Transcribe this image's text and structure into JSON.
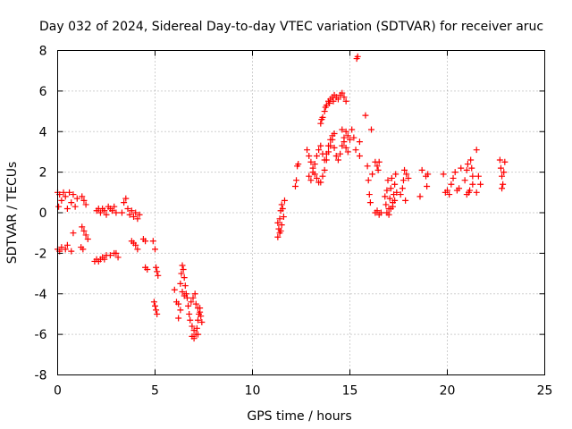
{
  "chart_data": {
    "type": "scatter",
    "title": "Day 032 of 2024, Sidereal Day-to-day VTEC variation (SDTVAR) for receiver aruc",
    "xlabel": "GPS time / hours",
    "ylabel": "SDTVAR / TECUs",
    "xlim": [
      0,
      25
    ],
    "ylim": [
      -8,
      8
    ],
    "xticks": [
      0,
      5,
      10,
      15,
      20,
      25
    ],
    "yticks": [
      -8,
      -6,
      -4,
      -2,
      0,
      2,
      4,
      6,
      8
    ],
    "grid": true,
    "marker": "+",
    "color": "#ff0000",
    "series": [
      {
        "name": "SDTVAR",
        "points": [
          [
            0.0,
            1.0
          ],
          [
            0.1,
            0.9
          ],
          [
            0.2,
            0.6
          ],
          [
            0.3,
            1.0
          ],
          [
            0.4,
            0.8
          ],
          [
            0.6,
            1.0
          ],
          [
            0.7,
            0.5
          ],
          [
            0.8,
            0.9
          ],
          [
            0.9,
            0.3
          ],
          [
            1.0,
            0.7
          ],
          [
            0.05,
            0.3
          ],
          [
            0.5,
            0.2
          ],
          [
            0.0,
            -1.8
          ],
          [
            0.1,
            -1.9
          ],
          [
            0.2,
            -1.7
          ],
          [
            0.4,
            -1.8
          ],
          [
            0.5,
            -1.6
          ],
          [
            0.7,
            -1.9
          ],
          [
            0.8,
            -1.0
          ],
          [
            1.2,
            -1.7
          ],
          [
            1.3,
            -1.8
          ],
          [
            1.25,
            -0.7
          ],
          [
            1.35,
            -0.9
          ],
          [
            1.45,
            -1.1
          ],
          [
            1.55,
            -1.3
          ],
          [
            1.25,
            0.8
          ],
          [
            1.35,
            0.6
          ],
          [
            1.45,
            0.4
          ],
          [
            2.0,
            0.1
          ],
          [
            2.1,
            0.2
          ],
          [
            2.2,
            0.0
          ],
          [
            2.3,
            0.2
          ],
          [
            2.4,
            0.1
          ],
          [
            2.5,
            -0.1
          ],
          [
            2.6,
            0.3
          ],
          [
            2.7,
            0.2
          ],
          [
            2.8,
            0.1
          ],
          [
            2.9,
            0.3
          ],
          [
            3.0,
            0.0
          ],
          [
            1.9,
            -2.4
          ],
          [
            2.0,
            -2.3
          ],
          [
            2.1,
            -2.4
          ],
          [
            2.2,
            -2.3
          ],
          [
            2.3,
            -2.2
          ],
          [
            2.4,
            -2.3
          ],
          [
            2.5,
            -2.1
          ],
          [
            2.7,
            -2.1
          ],
          [
            2.9,
            -2.0
          ],
          [
            3.0,
            -2.0
          ],
          [
            3.1,
            -2.2
          ],
          [
            3.3,
            0.0
          ],
          [
            3.4,
            0.5
          ],
          [
            3.5,
            0.7
          ],
          [
            3.6,
            0.2
          ],
          [
            3.7,
            -0.1
          ],
          [
            3.8,
            0.1
          ],
          [
            3.9,
            -0.2
          ],
          [
            4.0,
            0.0
          ],
          [
            4.1,
            -0.3
          ],
          [
            4.2,
            -0.1
          ],
          [
            3.8,
            -1.4
          ],
          [
            3.9,
            -1.5
          ],
          [
            4.0,
            -1.6
          ],
          [
            4.1,
            -1.8
          ],
          [
            4.4,
            -1.3
          ],
          [
            4.5,
            -1.4
          ],
          [
            4.5,
            -2.7
          ],
          [
            4.6,
            -2.8
          ],
          [
            4.9,
            -1.4
          ],
          [
            5.0,
            -1.8
          ],
          [
            5.05,
            -2.7
          ],
          [
            5.1,
            -2.9
          ],
          [
            5.15,
            -3.1
          ],
          [
            4.95,
            -4.4
          ],
          [
            5.0,
            -4.6
          ],
          [
            5.05,
            -4.8
          ],
          [
            5.1,
            -5.0
          ],
          [
            6.0,
            -3.8
          ],
          [
            6.1,
            -4.4
          ],
          [
            6.2,
            -4.5
          ],
          [
            6.3,
            -3.5
          ],
          [
            6.35,
            -3.0
          ],
          [
            6.4,
            -2.6
          ],
          [
            6.45,
            -2.8
          ],
          [
            6.5,
            -3.2
          ],
          [
            6.55,
            -3.6
          ],
          [
            6.6,
            -4.0
          ],
          [
            6.65,
            -4.2
          ],
          [
            6.7,
            -4.6
          ],
          [
            6.2,
            -5.2
          ],
          [
            6.3,
            -4.8
          ],
          [
            6.4,
            -3.9
          ],
          [
            6.5,
            -4.1
          ],
          [
            6.75,
            -5.0
          ],
          [
            6.8,
            -5.3
          ],
          [
            6.9,
            -5.6
          ],
          [
            7.0,
            -5.8
          ],
          [
            7.1,
            -6.0
          ],
          [
            7.15,
            -5.7
          ],
          [
            7.2,
            -5.3
          ],
          [
            7.25,
            -5.0
          ],
          [
            7.3,
            -4.7
          ],
          [
            7.35,
            -5.1
          ],
          [
            7.4,
            -5.4
          ],
          [
            6.85,
            -4.4
          ],
          [
            6.95,
            -4.2
          ],
          [
            7.05,
            -4.0
          ],
          [
            7.1,
            -4.5
          ],
          [
            7.2,
            -4.7
          ],
          [
            7.3,
            -4.9
          ],
          [
            6.9,
            -6.1
          ],
          [
            7.0,
            -6.2
          ],
          [
            7.2,
            -6.0
          ],
          [
            11.3,
            -1.2
          ],
          [
            11.35,
            -0.8
          ],
          [
            11.4,
            -0.3
          ],
          [
            11.45,
            0.1
          ],
          [
            11.5,
            0.4
          ],
          [
            11.55,
            0.2
          ],
          [
            11.4,
            -1.0
          ],
          [
            11.5,
            -0.6
          ],
          [
            11.6,
            -0.2
          ],
          [
            11.65,
            0.6
          ],
          [
            11.3,
            -0.5
          ],
          [
            11.45,
            -0.9
          ],
          [
            12.2,
            1.3
          ],
          [
            12.25,
            1.6
          ],
          [
            12.3,
            2.3
          ],
          [
            12.35,
            2.4
          ],
          [
            12.8,
            3.1
          ],
          [
            12.9,
            2.8
          ],
          [
            13.0,
            2.5
          ],
          [
            13.1,
            2.2
          ],
          [
            13.2,
            1.9
          ],
          [
            13.3,
            1.7
          ],
          [
            13.4,
            1.5
          ],
          [
            13.5,
            1.5
          ],
          [
            13.6,
            1.8
          ],
          [
            13.7,
            2.1
          ],
          [
            13.8,
            2.6
          ],
          [
            13.9,
            3.0
          ],
          [
            14.0,
            3.3
          ],
          [
            14.1,
            3.6
          ],
          [
            14.2,
            3.9
          ],
          [
            12.9,
            1.8
          ],
          [
            13.0,
            1.6
          ],
          [
            13.1,
            2.0
          ],
          [
            13.2,
            2.4
          ],
          [
            13.3,
            2.8
          ],
          [
            13.4,
            3.1
          ],
          [
            13.5,
            3.3
          ],
          [
            13.6,
            2.9
          ],
          [
            13.7,
            2.6
          ],
          [
            13.8,
            2.9
          ],
          [
            13.9,
            3.3
          ],
          [
            14.0,
            3.6
          ],
          [
            14.1,
            3.8
          ],
          [
            14.2,
            3.2
          ],
          [
            14.3,
            2.8
          ],
          [
            14.4,
            2.6
          ],
          [
            14.5,
            2.9
          ],
          [
            14.6,
            3.3
          ],
          [
            14.7,
            3.7
          ],
          [
            14.8,
            4.0
          ],
          [
            14.9,
            3.8
          ],
          [
            13.5,
            4.4
          ],
          [
            13.6,
            4.7
          ],
          [
            13.7,
            5.0
          ],
          [
            13.8,
            5.3
          ],
          [
            13.9,
            5.5
          ],
          [
            14.0,
            5.6
          ],
          [
            14.1,
            5.7
          ],
          [
            14.2,
            5.8
          ],
          [
            14.3,
            5.7
          ],
          [
            14.4,
            5.6
          ],
          [
            14.5,
            5.8
          ],
          [
            14.6,
            5.9
          ],
          [
            14.7,
            5.7
          ],
          [
            14.8,
            5.5
          ],
          [
            13.55,
            4.6
          ],
          [
            13.75,
            5.2
          ],
          [
            13.95,
            5.4
          ],
          [
            14.15,
            5.5
          ],
          [
            14.6,
            4.1
          ],
          [
            14.7,
            3.5
          ],
          [
            14.8,
            3.2
          ],
          [
            14.9,
            3.0
          ],
          [
            15.0,
            3.6
          ],
          [
            15.1,
            4.1
          ],
          [
            15.2,
            3.7
          ],
          [
            15.3,
            3.1
          ],
          [
            15.35,
            7.6
          ],
          [
            15.4,
            7.7
          ],
          [
            15.5,
            3.5
          ],
          [
            15.5,
            2.8
          ],
          [
            15.8,
            4.8
          ],
          [
            15.9,
            2.3
          ],
          [
            15.95,
            1.6
          ],
          [
            16.0,
            0.9
          ],
          [
            16.05,
            0.5
          ],
          [
            16.1,
            4.1
          ],
          [
            16.15,
            1.9
          ],
          [
            16.3,
            2.5
          ],
          [
            16.4,
            2.3
          ],
          [
            16.45,
            2.1
          ],
          [
            16.5,
            2.5
          ],
          [
            16.3,
            0.0
          ],
          [
            16.4,
            0.1
          ],
          [
            16.5,
            -0.1
          ],
          [
            16.6,
            0.0
          ],
          [
            16.8,
            0.8
          ],
          [
            16.85,
            0.4
          ],
          [
            16.9,
            1.1
          ],
          [
            16.95,
            1.6
          ],
          [
            17.0,
            0.2
          ],
          [
            17.05,
            0.7
          ],
          [
            17.1,
            1.2
          ],
          [
            17.15,
            1.7
          ],
          [
            17.2,
            0.3
          ],
          [
            17.25,
            0.9
          ],
          [
            17.3,
            1.4
          ],
          [
            17.35,
            1.9
          ],
          [
            16.9,
            0.0
          ],
          [
            17.0,
            -0.1
          ],
          [
            17.1,
            0.2
          ],
          [
            17.2,
            0.5
          ],
          [
            17.3,
            0.6
          ],
          [
            17.4,
            1.0
          ],
          [
            17.6,
            0.9
          ],
          [
            17.7,
            1.2
          ],
          [
            17.75,
            1.6
          ],
          [
            17.8,
            2.1
          ],
          [
            17.85,
            0.6
          ],
          [
            17.9,
            1.9
          ],
          [
            18.0,
            1.7
          ],
          [
            18.6,
            0.8
          ],
          [
            18.7,
            2.1
          ],
          [
            18.9,
            1.8
          ],
          [
            18.95,
            1.3
          ],
          [
            19.0,
            1.9
          ],
          [
            19.8,
            1.9
          ],
          [
            19.9,
            1.0
          ],
          [
            20.0,
            1.1
          ],
          [
            20.1,
            0.9
          ],
          [
            20.2,
            1.4
          ],
          [
            20.3,
            1.7
          ],
          [
            20.4,
            2.0
          ],
          [
            20.5,
            1.1
          ],
          [
            20.6,
            1.2
          ],
          [
            20.7,
            2.2
          ],
          [
            20.9,
            1.6
          ],
          [
            21.0,
            2.1
          ],
          [
            21.05,
            2.4
          ],
          [
            21.1,
            1.0
          ],
          [
            21.2,
            2.6
          ],
          [
            21.25,
            2.2
          ],
          [
            21.3,
            1.8
          ],
          [
            21.0,
            0.9
          ],
          [
            21.15,
            1.1
          ],
          [
            21.3,
            1.4
          ],
          [
            21.5,
            3.1
          ],
          [
            21.6,
            1.8
          ],
          [
            21.7,
            1.4
          ],
          [
            21.5,
            1.0
          ],
          [
            22.7,
            2.6
          ],
          [
            22.75,
            2.2
          ],
          [
            22.8,
            1.8
          ],
          [
            22.85,
            1.4
          ],
          [
            22.9,
            2.0
          ],
          [
            22.95,
            2.5
          ],
          [
            22.8,
            1.2
          ]
        ]
      }
    ]
  }
}
